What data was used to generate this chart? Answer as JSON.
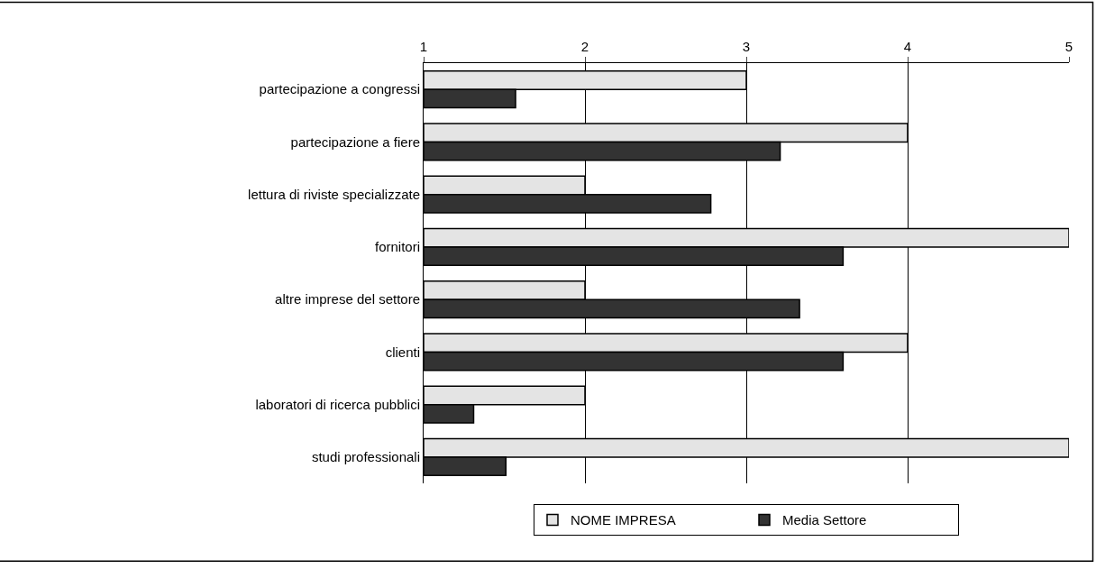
{
  "chart_data": {
    "type": "bar",
    "orientation": "horizontal",
    "categories": [
      "partecipazione a congressi",
      "partecipazione a fiere",
      "lettura di riviste specializzate",
      "fornitori",
      "altre imprese del settore",
      "clienti",
      "laboratori di ricerca pubblici",
      "studi professionali"
    ],
    "series": [
      {
        "name": "NOME IMPRESA",
        "color": "#e4e4e4",
        "values": [
          3,
          4,
          2,
          5,
          2,
          4,
          2,
          5
        ]
      },
      {
        "name": "Media Settore",
        "color": "#333333",
        "values": [
          1.57,
          3.21,
          2.78,
          3.6,
          3.33,
          3.6,
          1.31,
          1.51
        ]
      }
    ],
    "xlim": [
      1,
      5
    ],
    "xticks": [
      1,
      2,
      3,
      4,
      5
    ],
    "grid": "x",
    "legend": "bottom"
  }
}
